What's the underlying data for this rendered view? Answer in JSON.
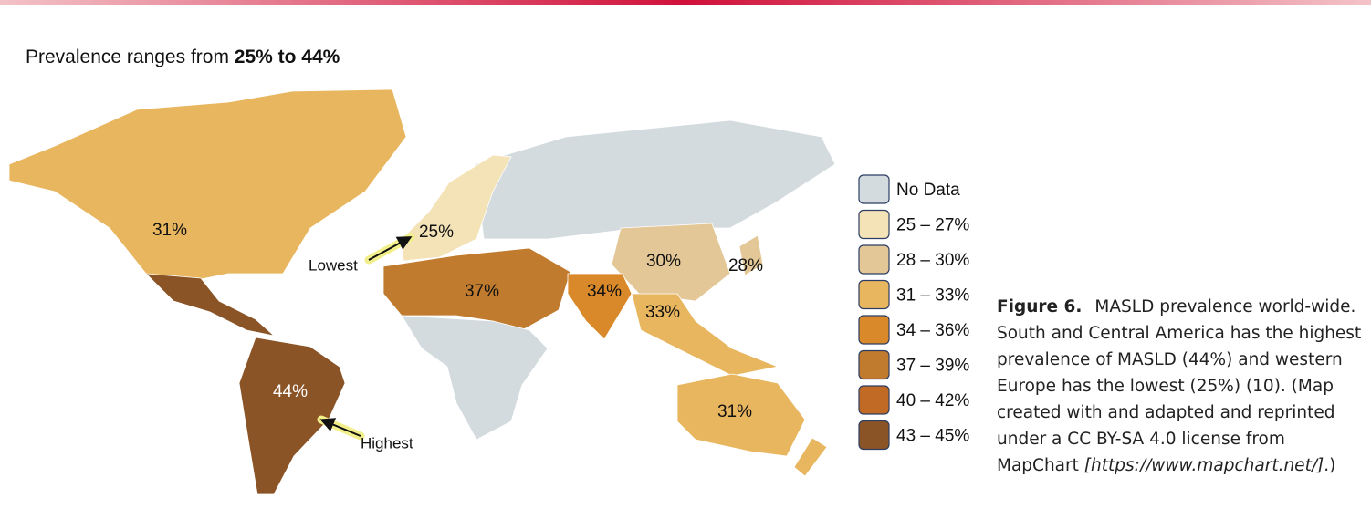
{
  "title": {
    "text": "Prevalence ranges from ",
    "highlight": "25% to 44%"
  },
  "map_labels": [
    "31%",
    "25%",
    "30%",
    "28%",
    "37%",
    "34%",
    "33%",
    "44%",
    "31%"
  ],
  "annotations": {
    "lowest": "Lowest",
    "highest": "Highest"
  },
  "legend": {
    "items": [
      {
        "label": "No Data",
        "color": "#d3dbde"
      },
      {
        "label": "25 – 27%",
        "color": "#f5e3b8"
      },
      {
        "label": "28 – 30%",
        "color": "#e3c796"
      },
      {
        "label": "31 – 33%",
        "color": "#e8b65f"
      },
      {
        "label": "34 – 36%",
        "color": "#d9892a"
      },
      {
        "label": "37 – 39%",
        "color": "#c07b2e"
      },
      {
        "label": "40 – 42%",
        "color": "#c06a25"
      },
      {
        "label": "43 – 45%",
        "color": "#8b5426"
      }
    ]
  },
  "caption": {
    "label": "Figure 6.",
    "text": "MASLD prevalence world-wide. South and Central America has the highest prevalence of MASLD (44%) and western Europe has the lowest (25%) (10). (Map created with and adapted and reprinted under a CC BY-SA 4.0 license from MapChart ",
    "link": "[https://www.mapchart.net/]",
    "end": ".)"
  }
}
